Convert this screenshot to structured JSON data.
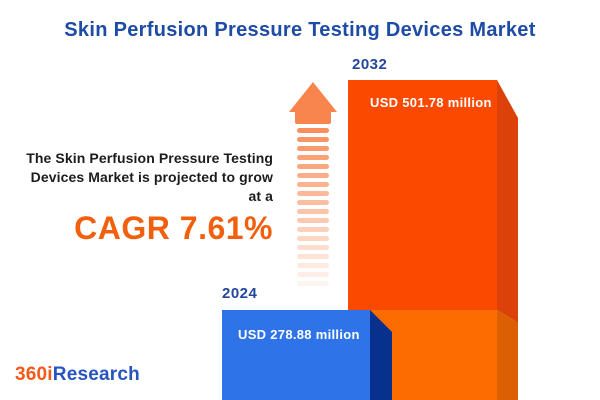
{
  "title": "Skin Perfusion Pressure Testing Devices Market",
  "description": {
    "line1": "The Skin Perfusion Pressure Testing",
    "line2": "Devices Market is projected to grow",
    "line3": "at a",
    "cagr": "CAGR 7.61%"
  },
  "bars": [
    {
      "year": "2024",
      "label": "USD 278.88 million"
    },
    {
      "year": "2032",
      "label": "USD 501.78 million"
    }
  ],
  "logo": {
    "part1": "360i",
    "part2": "Research"
  },
  "arrow": {
    "stripes": 18
  },
  "colors": {
    "title_blue": "#1E4BA6",
    "year_blue": "#24479E",
    "text_dark": "#1C1C1C",
    "cagr_orange": "#F2600E",
    "arrow_orange": "#F8854E",
    "bar_2032_front": "#FB4A00",
    "bar_2032_front_lower": "#FC6C01",
    "bar_2032_side": "#DB4108",
    "bar_2032_side_lower": "#DC6002",
    "bar_2024_front": "#2E74E8",
    "bar_2024_side": "#07318C",
    "logo_orange": "#F4591A",
    "logo_blue": "#2553C0"
  },
  "chart_data": {
    "type": "bar",
    "title": "Skin Perfusion Pressure Testing Devices Market",
    "categories": [
      "2024",
      "2032"
    ],
    "values": [
      278.88,
      501.78
    ],
    "unit": "USD million",
    "value_labels": [
      "USD 278.88 million",
      "USD 501.78 million"
    ],
    "annotations": [
      "The Skin Perfusion Pressure Testing Devices Market is projected to grow at a CAGR 7.61%"
    ],
    "cagr_percent": 7.61,
    "bar_colors": [
      "#2E74E8",
      "#FB4A00"
    ],
    "legend": false,
    "axes_shown": false
  }
}
